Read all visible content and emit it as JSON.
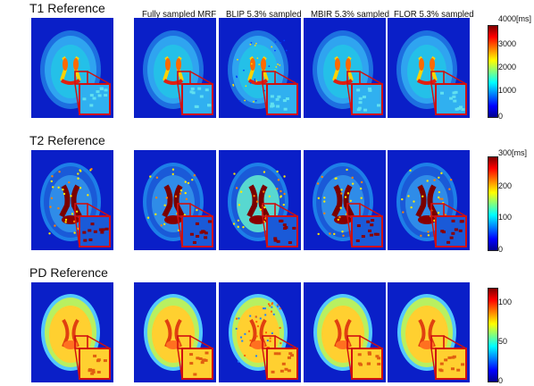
{
  "row_titles": {
    "t1": "T1 Reference",
    "t2": "T2 Reference",
    "pd": "PD Reference"
  },
  "column_titles": {
    "fully": "Fully sampled MRF",
    "blip": "BLIP 5.3% sampled",
    "mbir": "MBIR 5.3% sampled",
    "flor": "FLOR 5.3% sampled"
  },
  "colorbars": {
    "t1": {
      "ticks": [
        "4000[ms]",
        "3000",
        "2000",
        "1000",
        "0"
      ]
    },
    "t2": {
      "ticks": [
        "300[ms]",
        "200",
        "100",
        "0"
      ]
    },
    "pd": {
      "ticks": [
        "100",
        "50",
        "0"
      ]
    }
  },
  "colors": {
    "background_blue": "#0a1fc8",
    "inset_box": "#d01010",
    "colormap": "jet"
  }
}
